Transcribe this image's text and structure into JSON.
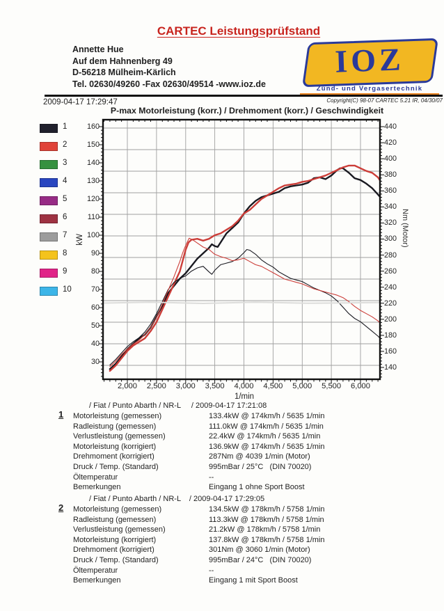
{
  "header": {
    "title": "CARTEC Leistungsprüfstand",
    "title_color": "#c8241e",
    "address_lines": "Annette Hue\nAuf dem Hahnenberg 49\nD-56218 Mülheim-Kärlich\nTel. 02630/49260 -Fax 02630/49514 -www.ioz.de",
    "logo": {
      "text": "IOZ",
      "subtitle": "Zünd- und Vergasertechnik",
      "bg_color": "#f2b722",
      "fg_color": "#2a3a9a",
      "underline_color": "#e8821e"
    },
    "datetime": "2009-04-17 17:29:47",
    "copyright": "Copyright(C) 98-07 CARTEC 5.21 IR, 04/30/07"
  },
  "chart_data": {
    "type": "line",
    "title": "P-max Motorleistung (korr.) / Drehmoment (korr.) / Geschwindigkeit",
    "xlabel": "1/min",
    "ylabel_left": "kW",
    "ylabel_right": "Nm (Motor)",
    "grid": true,
    "xlim": [
      1582,
      6340
    ],
    "ylim_left": [
      20,
      164
    ],
    "ylim_right": [
      125,
      449
    ],
    "x_ticks": [
      {
        "value": 2000,
        "label": "2,000"
      },
      {
        "value": 2500,
        "label": "2,500"
      },
      {
        "value": 3000,
        "label": "3,000"
      },
      {
        "value": 3500,
        "label": "3,500"
      },
      {
        "value": 4000,
        "label": "4,000"
      },
      {
        "value": 4500,
        "label": "4,500"
      },
      {
        "value": 5000,
        "label": "5,000"
      },
      {
        "value": 5500,
        "label": "5,500"
      },
      {
        "value": 6000,
        "label": "6,000"
      }
    ],
    "left_ticks": [
      160,
      150,
      140,
      130,
      120,
      110,
      100,
      90,
      80,
      70,
      60,
      50,
      40,
      30
    ],
    "right_ticks": [
      440,
      420,
      400,
      380,
      360,
      340,
      320,
      300,
      280,
      260,
      240,
      220,
      200,
      180,
      160,
      140
    ],
    "legend": [
      {
        "label": "1",
        "color": "#20202c"
      },
      {
        "label": "2",
        "color": "#e04339"
      },
      {
        "label": "3",
        "color": "#35913f"
      },
      {
        "label": "4",
        "color": "#2946c0"
      },
      {
        "label": "5",
        "color": "#972b85"
      },
      {
        "label": "6",
        "color": "#9e3242"
      },
      {
        "label": "7",
        "color": "#9c9c9c"
      },
      {
        "label": "8",
        "color": "#f4c31d"
      },
      {
        "label": "9",
        "color": "#e02388"
      },
      {
        "label": "10",
        "color": "#3cb5e8"
      }
    ],
    "series": [
      {
        "name": "power-run1",
        "axis": "kW",
        "color": "#191920",
        "width": 2.4,
        "points": [
          [
            1700,
            26
          ],
          [
            1800,
            29
          ],
          [
            1900,
            33
          ],
          [
            2000,
            37
          ],
          [
            2100,
            40
          ],
          [
            2200,
            43
          ],
          [
            2300,
            45
          ],
          [
            2400,
            49
          ],
          [
            2500,
            55
          ],
          [
            2600,
            61
          ],
          [
            2700,
            68
          ],
          [
            2800,
            72
          ],
          [
            2900,
            76
          ],
          [
            3000,
            79
          ],
          [
            3100,
            83
          ],
          [
            3200,
            87
          ],
          [
            3300,
            90
          ],
          [
            3400,
            93
          ],
          [
            3450,
            95
          ],
          [
            3500,
            94
          ],
          [
            3550,
            93.5
          ],
          [
            3600,
            96
          ],
          [
            3700,
            101
          ],
          [
            3800,
            104
          ],
          [
            3900,
            107
          ],
          [
            4000,
            112
          ],
          [
            4100,
            116
          ],
          [
            4200,
            119
          ],
          [
            4300,
            121
          ],
          [
            4400,
            122
          ],
          [
            4500,
            123
          ],
          [
            4600,
            124
          ],
          [
            4700,
            126
          ],
          [
            4800,
            127
          ],
          [
            4900,
            127.5
          ],
          [
            5000,
            128
          ],
          [
            5100,
            129
          ],
          [
            5200,
            131.5
          ],
          [
            5300,
            132
          ],
          [
            5400,
            131
          ],
          [
            5500,
            133
          ],
          [
            5600,
            136
          ],
          [
            5650,
            137
          ],
          [
            5700,
            137
          ],
          [
            5800,
            134.5
          ],
          [
            5900,
            131.5
          ],
          [
            6000,
            130.5
          ],
          [
            6100,
            128.5
          ],
          [
            6200,
            126
          ],
          [
            6300,
            122.5
          ],
          [
            6340,
            121
          ]
        ]
      },
      {
        "name": "power-run2",
        "axis": "kW",
        "color": "#cc3d38",
        "width": 2.4,
        "points": [
          [
            1700,
            25
          ],
          [
            1800,
            28
          ],
          [
            1900,
            32
          ],
          [
            2000,
            36
          ],
          [
            2100,
            39
          ],
          [
            2200,
            41
          ],
          [
            2300,
            43
          ],
          [
            2400,
            47
          ],
          [
            2500,
            52
          ],
          [
            2600,
            59
          ],
          [
            2700,
            66
          ],
          [
            2800,
            73
          ],
          [
            2900,
            80
          ],
          [
            2950,
            86
          ],
          [
            3000,
            92
          ],
          [
            3050,
            96
          ],
          [
            3100,
            97.5
          ],
          [
            3200,
            98
          ],
          [
            3300,
            97
          ],
          [
            3400,
            98
          ],
          [
            3500,
            100
          ],
          [
            3600,
            101
          ],
          [
            3700,
            103
          ],
          [
            3800,
            105
          ],
          [
            3900,
            108
          ],
          [
            4000,
            112
          ],
          [
            4100,
            114
          ],
          [
            4200,
            117
          ],
          [
            4300,
            120
          ],
          [
            4400,
            122
          ],
          [
            4500,
            124
          ],
          [
            4600,
            126
          ],
          [
            4700,
            127.5
          ],
          [
            4800,
            128
          ],
          [
            4900,
            128.5
          ],
          [
            5000,
            129.5
          ],
          [
            5100,
            130
          ],
          [
            5200,
            131
          ],
          [
            5300,
            132
          ],
          [
            5400,
            133
          ],
          [
            5500,
            134.5
          ],
          [
            5600,
            136
          ],
          [
            5700,
            137.5
          ],
          [
            5800,
            138.5
          ],
          [
            5900,
            138.5
          ],
          [
            6000,
            137
          ],
          [
            6100,
            135.5
          ],
          [
            6200,
            134.5
          ],
          [
            6300,
            132
          ],
          [
            6340,
            130
          ]
        ]
      },
      {
        "name": "torque-run1",
        "axis": "Nm",
        "color": "#191920",
        "width": 1.1,
        "points": [
          [
            1700,
            143
          ],
          [
            1800,
            150
          ],
          [
            1900,
            158
          ],
          [
            2000,
            166
          ],
          [
            2100,
            172
          ],
          [
            2200,
            177
          ],
          [
            2300,
            184
          ],
          [
            2400,
            194
          ],
          [
            2500,
            207
          ],
          [
            2600,
            222
          ],
          [
            2700,
            237
          ],
          [
            2800,
            246
          ],
          [
            2900,
            251
          ],
          [
            3000,
            254
          ],
          [
            3100,
            260
          ],
          [
            3200,
            264
          ],
          [
            3300,
            266
          ],
          [
            3400,
            259
          ],
          [
            3450,
            256
          ],
          [
            3500,
            261
          ],
          [
            3600,
            268
          ],
          [
            3700,
            270
          ],
          [
            3800,
            272
          ],
          [
            3900,
            276
          ],
          [
            4000,
            283
          ],
          [
            4050,
            287
          ],
          [
            4100,
            286
          ],
          [
            4200,
            281
          ],
          [
            4300,
            274
          ],
          [
            4400,
            269
          ],
          [
            4500,
            265
          ],
          [
            4600,
            259
          ],
          [
            4700,
            255
          ],
          [
            4800,
            251
          ],
          [
            4900,
            249
          ],
          [
            5000,
            247
          ],
          [
            5100,
            243
          ],
          [
            5200,
            239
          ],
          [
            5300,
            236
          ],
          [
            5400,
            233
          ],
          [
            5500,
            229
          ],
          [
            5600,
            223
          ],
          [
            5700,
            215
          ],
          [
            5800,
            207
          ],
          [
            5900,
            201
          ],
          [
            6000,
            197
          ],
          [
            6100,
            191
          ],
          [
            6200,
            185
          ],
          [
            6300,
            179
          ],
          [
            6340,
            176
          ]
        ]
      },
      {
        "name": "torque-run2",
        "axis": "Nm",
        "color": "#cc3d38",
        "width": 1.1,
        "points": [
          [
            1700,
            141
          ],
          [
            1800,
            148
          ],
          [
            1900,
            156
          ],
          [
            2000,
            163
          ],
          [
            2100,
            169
          ],
          [
            2200,
            174
          ],
          [
            2300,
            181
          ],
          [
            2400,
            190
          ],
          [
            2500,
            202
          ],
          [
            2600,
            219
          ],
          [
            2700,
            236
          ],
          [
            2800,
            253
          ],
          [
            2900,
            272
          ],
          [
            2950,
            283
          ],
          [
            3000,
            292
          ],
          [
            3060,
            301
          ],
          [
            3120,
            299
          ],
          [
            3200,
            295
          ],
          [
            3300,
            290
          ],
          [
            3400,
            287
          ],
          [
            3500,
            281
          ],
          [
            3600,
            278
          ],
          [
            3700,
            276
          ],
          [
            3800,
            273
          ],
          [
            3900,
            274
          ],
          [
            4000,
            276
          ],
          [
            4100,
            272
          ],
          [
            4200,
            268
          ],
          [
            4300,
            266
          ],
          [
            4400,
            262
          ],
          [
            4500,
            258
          ],
          [
            4600,
            254
          ],
          [
            4700,
            250
          ],
          [
            4800,
            248
          ],
          [
            4900,
            246
          ],
          [
            5000,
            244
          ],
          [
            5100,
            241
          ],
          [
            5200,
            238
          ],
          [
            5300,
            236
          ],
          [
            5400,
            234
          ],
          [
            5500,
            232
          ],
          [
            5600,
            230
          ],
          [
            5700,
            227
          ],
          [
            5800,
            222
          ],
          [
            5900,
            216
          ],
          [
            6000,
            211
          ],
          [
            6100,
            207
          ],
          [
            6200,
            203
          ],
          [
            6300,
            198
          ],
          [
            6340,
            195
          ]
        ]
      },
      {
        "name": "faint-scan-trace",
        "axis": "kW",
        "color": "#dcdcda",
        "width": 2,
        "points": [
          [
            1582,
            62.5
          ],
          [
            2400,
            63
          ],
          [
            3300,
            62.3
          ],
          [
            4200,
            63
          ],
          [
            5100,
            62.4
          ],
          [
            6334,
            62.8
          ]
        ]
      }
    ]
  },
  "blocks": [
    {
      "marker": "1",
      "header": "/ Fiat / Punto Abarth / NR-L     / 2009-04-17 17:21:08",
      "rows": [
        {
          "label": "Motorleistung (gemessen)",
          "value": "133.4kW @ 174km/h / 5635 1/min"
        },
        {
          "label": "Radleistung (gemessen)",
          "value": "111.0kW @ 174km/h / 5635 1/min"
        },
        {
          "label": "Verlustleistung (gemessen)",
          "value": "22.4kW @ 174km/h / 5635 1/min"
        },
        {
          "label": "Motorleistung (korrigiert)",
          "value": "136.9kW @ 174km/h / 5635 1/min"
        },
        {
          "label": "Drehmoment (korrigiert)",
          "value": "287Nm @ 4039 1/min (Motor)"
        },
        {
          "label": "Druck / Temp. (Standard)",
          "value": "995mBar / 25°C   (DIN 70020)"
        },
        {
          "label": "Öltemperatur",
          "value": "--"
        },
        {
          "label": "Bemerkungen",
          "value": "Eingang 1 ohne Sport Boost"
        }
      ]
    },
    {
      "marker": "2",
      "header": "/ Fiat / Punto Abarth / NR-L    / 2009-04-17 17:29:05",
      "rows": [
        {
          "label": "Motorleistung (gemessen)",
          "value": "134.5kW @ 178km/h / 5758 1/min"
        },
        {
          "label": "Radleistung (gemessen)",
          "value": "113.3kW @ 178km/h / 5758 1/min"
        },
        {
          "label": "Verlustleistung (gemessen)",
          "value": "21.2kW @ 178km/h / 5758 1/min"
        },
        {
          "label": "Motorleistung (korrigiert)",
          "value": "137.8kW @ 178km/h / 5758 1/min"
        },
        {
          "label": "Drehmoment (korrigiert)",
          "value": "301Nm @ 3060 1/min (Motor)"
        },
        {
          "label": "Druck / Temp. (Standard)",
          "value": "995mBar / 24°C   (DIN 70020)"
        },
        {
          "label": "Öltemperatur",
          "value": "--"
        },
        {
          "label": "Bemerkungen",
          "value": "Eingang 1 mit Sport Boost"
        }
      ]
    }
  ]
}
